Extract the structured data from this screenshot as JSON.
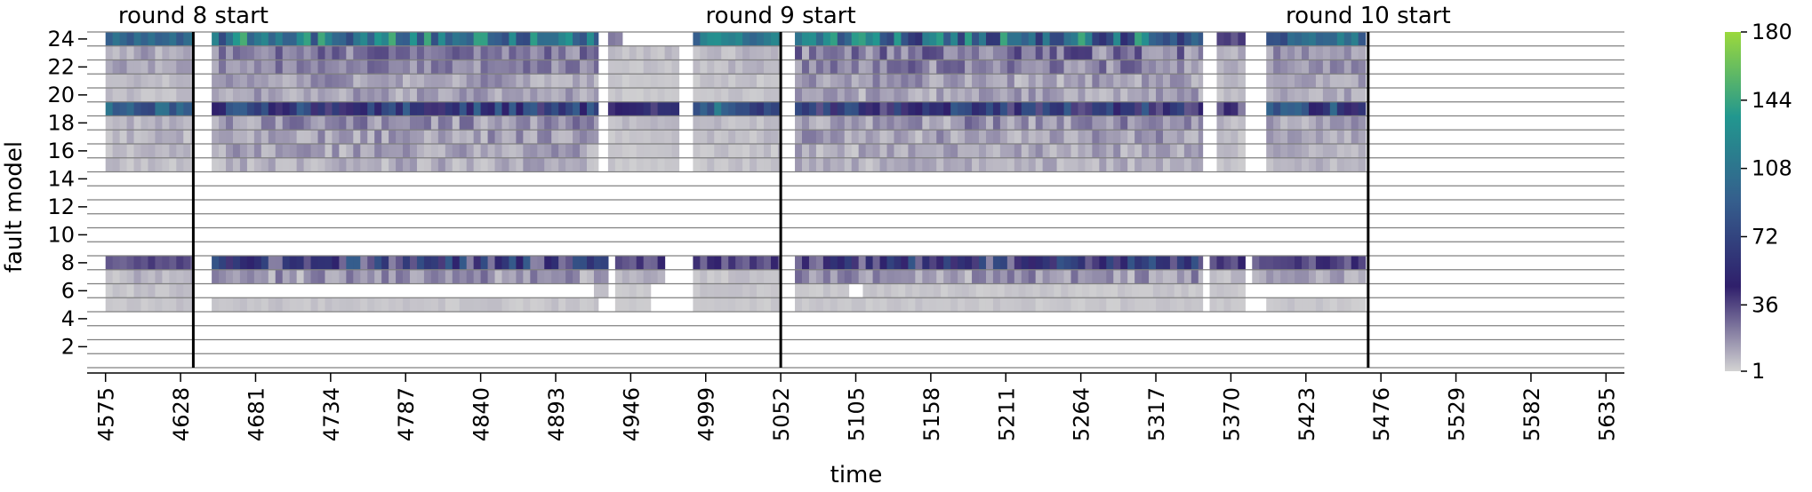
{
  "chart_data": {
    "type": "heatmap",
    "title": "",
    "xlabel": "time",
    "ylabel": "fault model",
    "x_range": [
      4562,
      5648
    ],
    "x_ticks": [
      4575,
      4628,
      4681,
      4734,
      4787,
      4840,
      4893,
      4946,
      4999,
      5052,
      5105,
      5158,
      5211,
      5264,
      5317,
      5370,
      5423,
      5476,
      5529,
      5582,
      5635
    ],
    "y_ticks": [
      2,
      4,
      6,
      8,
      10,
      12,
      14,
      16,
      18,
      20,
      22,
      24
    ],
    "y_range": [
      1,
      24
    ],
    "rounds": [
      {
        "label": "round 8 start",
        "time": 4637
      },
      {
        "label": "round 9 start",
        "time": 5052
      },
      {
        "label": "round 10 start",
        "time": 5467
      }
    ],
    "colorbar": {
      "min": 1,
      "max": 180,
      "ticks": [
        1,
        36,
        72,
        108,
        144,
        180
      ],
      "colormap": [
        "#d3d3d3",
        "#2f1f6b",
        "#355e8d",
        "#22978f",
        "#9bd93c"
      ]
    },
    "grid": true,
    "series": [
      {
        "row": 24,
        "segments": [
          [
            4575,
            4637,
            85,
            110
          ],
          [
            4650,
            4923,
            75,
            150
          ],
          [
            4930,
            4940,
            20,
            30
          ],
          [
            4990,
            5052,
            90,
            130
          ],
          [
            5062,
            5350,
            55,
            150
          ],
          [
            5360,
            5380,
            20,
            40
          ],
          [
            5395,
            5465,
            70,
            125
          ]
        ]
      },
      {
        "row": 23,
        "segments": [
          [
            4575,
            4637,
            5,
            20
          ],
          [
            4650,
            4923,
            10,
            35
          ],
          [
            4930,
            4980,
            2,
            10
          ],
          [
            4990,
            5052,
            3,
            12
          ],
          [
            5062,
            5350,
            8,
            40
          ],
          [
            5360,
            5380,
            5,
            15
          ],
          [
            5395,
            5465,
            8,
            30
          ]
        ]
      },
      {
        "row": 22,
        "segments": [
          [
            4575,
            4637,
            5,
            20
          ],
          [
            4650,
            4923,
            10,
            30
          ],
          [
            4930,
            4980,
            2,
            8
          ],
          [
            4990,
            5052,
            3,
            12
          ],
          [
            5062,
            5350,
            8,
            35
          ],
          [
            5360,
            5380,
            5,
            15
          ],
          [
            5395,
            5465,
            8,
            25
          ]
        ]
      },
      {
        "row": 21,
        "segments": [
          [
            4575,
            4637,
            3,
            12
          ],
          [
            4650,
            4923,
            5,
            25
          ],
          [
            4930,
            4980,
            2,
            6
          ],
          [
            4990,
            5052,
            2,
            8
          ],
          [
            5062,
            5350,
            4,
            25
          ],
          [
            5360,
            5380,
            3,
            10
          ],
          [
            5395,
            5465,
            5,
            20
          ]
        ]
      },
      {
        "row": 20,
        "segments": [
          [
            4575,
            4637,
            3,
            10
          ],
          [
            4650,
            4923,
            5,
            22
          ],
          [
            4930,
            4980,
            2,
            6
          ],
          [
            4990,
            5052,
            2,
            8
          ],
          [
            5062,
            5350,
            4,
            22
          ],
          [
            5360,
            5380,
            3,
            10
          ],
          [
            5395,
            5465,
            5,
            18
          ]
        ]
      },
      {
        "row": 19,
        "segments": [
          [
            4575,
            4637,
            70,
            110
          ],
          [
            4650,
            4923,
            35,
            95
          ],
          [
            4930,
            4980,
            35,
            60
          ],
          [
            4990,
            5052,
            60,
            120
          ],
          [
            5062,
            5350,
            30,
            90
          ],
          [
            5360,
            5380,
            20,
            45
          ],
          [
            5395,
            5465,
            40,
            100
          ]
        ]
      },
      {
        "row": 18,
        "segments": [
          [
            4575,
            4637,
            4,
            18
          ],
          [
            4650,
            4923,
            6,
            30
          ],
          [
            4930,
            4980,
            3,
            10
          ],
          [
            4990,
            5052,
            3,
            12
          ],
          [
            5062,
            5350,
            5,
            30
          ],
          [
            5360,
            5380,
            4,
            12
          ],
          [
            5395,
            5465,
            5,
            22
          ]
        ]
      },
      {
        "row": 17,
        "segments": [
          [
            4575,
            4637,
            3,
            14
          ],
          [
            4650,
            4923,
            5,
            25
          ],
          [
            4930,
            4980,
            2,
            8
          ],
          [
            4990,
            5052,
            2,
            10
          ],
          [
            5062,
            5350,
            4,
            25
          ],
          [
            5360,
            5380,
            3,
            10
          ],
          [
            5395,
            5465,
            4,
            18
          ]
        ]
      },
      {
        "row": 16,
        "segments": [
          [
            4575,
            4637,
            3,
            12
          ],
          [
            4650,
            4923,
            4,
            22
          ],
          [
            4930,
            4980,
            2,
            7
          ],
          [
            4990,
            5052,
            2,
            9
          ],
          [
            5062,
            5350,
            3,
            20
          ],
          [
            5360,
            5380,
            3,
            9
          ],
          [
            5395,
            5465,
            4,
            16
          ]
        ]
      },
      {
        "row": 15,
        "segments": [
          [
            4575,
            4637,
            2,
            10
          ],
          [
            4650,
            4923,
            3,
            18
          ],
          [
            4930,
            4980,
            2,
            6
          ],
          [
            4990,
            5052,
            2,
            8
          ],
          [
            5062,
            5350,
            3,
            16
          ],
          [
            5360,
            5380,
            2,
            8
          ],
          [
            5395,
            5465,
            3,
            14
          ]
        ]
      },
      {
        "row": 8,
        "segments": [
          [
            4575,
            4637,
            25,
            40
          ],
          [
            4650,
            4930,
            20,
            90
          ],
          [
            4935,
            4970,
            25,
            45
          ],
          [
            4990,
            5052,
            25,
            45
          ],
          [
            5062,
            5350,
            20,
            85
          ],
          [
            5355,
            5380,
            25,
            45
          ],
          [
            5385,
            5465,
            25,
            45
          ]
        ]
      },
      {
        "row": 7,
        "segments": [
          [
            4575,
            4637,
            3,
            14
          ],
          [
            4650,
            4930,
            3,
            28
          ],
          [
            4935,
            4970,
            5,
            20
          ],
          [
            4990,
            5052,
            2,
            8
          ],
          [
            5062,
            5350,
            4,
            28
          ],
          [
            5355,
            5380,
            3,
            10
          ],
          [
            5385,
            5465,
            5,
            20
          ]
        ]
      },
      {
        "row": 6,
        "segments": [
          [
            4575,
            4637,
            2,
            8
          ],
          [
            4920,
            4930,
            3,
            8
          ],
          [
            4935,
            4960,
            2,
            6
          ],
          [
            4990,
            5052,
            2,
            6
          ],
          [
            5062,
            5100,
            2,
            6
          ],
          [
            5110,
            5350,
            2,
            6
          ],
          [
            5355,
            5380,
            2,
            6
          ]
        ]
      },
      {
        "row": 5,
        "segments": [
          [
            4575,
            4637,
            2,
            7
          ],
          [
            4650,
            4923,
            2,
            7
          ],
          [
            4935,
            4960,
            2,
            5
          ],
          [
            4990,
            5052,
            2,
            6
          ],
          [
            5062,
            5350,
            2,
            6
          ],
          [
            5355,
            5380,
            2,
            6
          ],
          [
            5395,
            5465,
            2,
            6
          ]
        ]
      }
    ]
  }
}
